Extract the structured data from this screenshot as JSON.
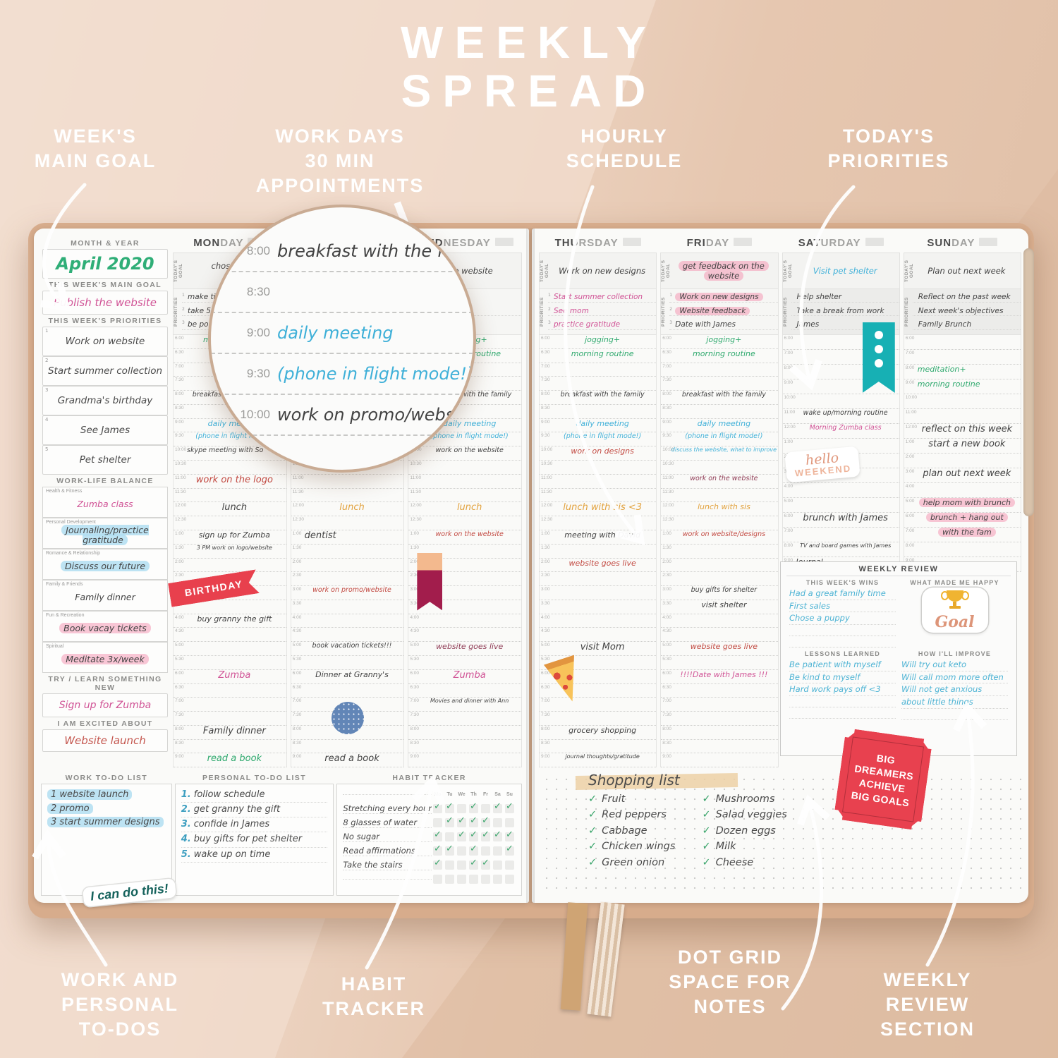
{
  "page_title": "WEEKLY\nSPREAD",
  "callouts": {
    "main_goal": "WEEK'S\nMAIN GOAL",
    "appointments": "WORK DAYS\n30 MIN\nAPPOINTMENTS",
    "hourly": "HOURLY\nSCHEDULE",
    "priorities": "TODAY'S\nPRIORITIES",
    "todos": "WORK AND\nPERSONAL\nTO-DOS",
    "habit": "HABIT\nTRACKER",
    "dotgrid": "DOT GRID\nSPACE FOR\nNOTES",
    "review": "WEEKLY\nREVIEW\nSECTION"
  },
  "labels": {
    "today_goal": "TODAY'S GOAL",
    "priorities": "PRIORITIES"
  },
  "sidebar": {
    "month_label": "MONTH & YEAR",
    "month_value": "April 2020",
    "main_goal_label": "THIS WEEK'S MAIN GOAL",
    "main_goal_value": "Publish the website",
    "priorities_label": "THIS WEEK'S PRIORITIES",
    "priorities": [
      "Work on website",
      "Start summer collection",
      "Grandma's birthday",
      "See James",
      "Pet shelter"
    ],
    "balance_label": "WORK-LIFE BALANCE",
    "balance": [
      {
        "category": "Health & Fitness",
        "value": "Zumba class",
        "color": "pink",
        "highlight": null
      },
      {
        "category": "Personal Development",
        "value": "Journaling/practice gratitude",
        "color": "black",
        "highlight": "blue"
      },
      {
        "category": "Romance & Relationship",
        "value": "Discuss our future",
        "color": "black",
        "highlight": "blue"
      },
      {
        "category": "Family & Friends",
        "value": "Family dinner",
        "color": "black",
        "highlight": null
      },
      {
        "category": "Fun & Recreation",
        "value": "Book vacay tickets",
        "color": "black",
        "highlight": "pink"
      },
      {
        "category": "Spiritual",
        "value": "Meditate 3x/week",
        "color": "black",
        "highlight": "pink"
      }
    ],
    "try_label": "TRY / LEARN SOMETHING NEW",
    "try_value": "Sign up for Zumba",
    "excited_label": "I AM EXCITED ABOUT",
    "excited_value": "Website launch"
  },
  "work_todo": {
    "label": "WORK TO-DO LIST",
    "items": [
      "1 website launch",
      "2 promo",
      "3 start summer designs"
    ],
    "sticker": "I can do this!"
  },
  "personal_todo": {
    "label": "PERSONAL TO-DO LIST",
    "items": [
      "follow schedule",
      "get granny the gift",
      "confide in James",
      "buy gifts for pet shelter",
      "wake up on time"
    ]
  },
  "habit_tracker": {
    "label": "HABIT TRACKER",
    "days": [
      "Mo",
      "Tu",
      "We",
      "Th",
      "Fr",
      "Sa",
      "Su"
    ],
    "habits": [
      {
        "name": "Stretching every hour",
        "checks": [
          1,
          1,
          0,
          1,
          0,
          1,
          1
        ]
      },
      {
        "name": "8 glasses of water",
        "checks": [
          0,
          1,
          1,
          1,
          1,
          0,
          0
        ]
      },
      {
        "name": "No sugar",
        "checks": [
          1,
          0,
          1,
          1,
          1,
          1,
          1
        ]
      },
      {
        "name": "Read affirmations",
        "checks": [
          1,
          1,
          0,
          1,
          0,
          0,
          1
        ]
      },
      {
        "name": "Take the stairs",
        "checks": [
          1,
          0,
          0,
          1,
          1,
          0,
          0
        ]
      },
      {
        "name": "",
        "checks": [
          0,
          0,
          0,
          0,
          0,
          0,
          0
        ]
      }
    ]
  },
  "shopping": {
    "title": "Shopping list",
    "col1": [
      "Fruit",
      "Red peppers",
      "Cabbage",
      "Chicken wings",
      "Green onion"
    ],
    "col2": [
      "Mushrooms",
      "Salad veggies",
      "Dozen eggs",
      "Milk",
      "Cheese"
    ]
  },
  "review": {
    "title": "WEEKLY REVIEW",
    "wins_label": "THIS WEEK'S WINS",
    "wins": [
      "Had a great family time",
      "First sales",
      "Chose a puppy"
    ],
    "happy_label": "WHAT MADE ME HAPPY",
    "happy_sticker": "Goal",
    "lessons_label": "LESSONS LEARNED",
    "lessons": [
      "Be patient with myself",
      "Be kind to myself",
      "Hard work pays off <3"
    ],
    "improve_label": "HOW I'LL IMPROVE",
    "improve": [
      "Will try out keto",
      "Will call mom more often",
      "Will not get anxious",
      "about little things"
    ]
  },
  "stickers": {
    "birthday": "BIRTHDAY",
    "big_goals": "BIG\nDREAMERS\nACHIEVE\nBIG GOALS",
    "hello1": "hello",
    "hello2": "WEEKEND",
    "goal": "Goal"
  },
  "magnifier": {
    "rows": [
      {
        "time": "8:00",
        "text": "breakfast with the family",
        "color": "black"
      },
      {
        "time": "8:30",
        "text": "",
        "color": "black"
      },
      {
        "time": "9:00",
        "text": "daily meeting",
        "color": "blue"
      },
      {
        "time": "9:30",
        "text": "(phone in flight mode!)",
        "color": "blue"
      },
      {
        "time": "10:00",
        "text": "work on promo/website",
        "color": "black"
      },
      {
        "time": "10:30",
        "text": "",
        "color": "black"
      }
    ]
  },
  "slots": {
    "weekday": [
      "6:00",
      "6:30",
      "7:00",
      "7:30",
      "8:00",
      "8:30",
      "9:00",
      "9:30",
      "10:00",
      "10:30",
      "11:00",
      "11:30",
      "12:00",
      "12:30",
      "1:00",
      "1:30",
      "2:00",
      "2:30",
      "3:00",
      "3:30",
      "4:00",
      "4:30",
      "5:00",
      "5:30",
      "6:00",
      "6:30",
      "7:00",
      "7:30",
      "8:00",
      "8:30",
      "9:00"
    ],
    "weekend": [
      "6:00",
      "7:00",
      "8:00",
      "9:00",
      "10:00",
      "11:00",
      "12:00",
      "1:00",
      "2:00",
      "3:00",
      "4:00",
      "5:00",
      "6:00",
      "7:00",
      "8:00",
      "9:00"
    ]
  },
  "days": [
    {
      "name_bold": "MON",
      "name_rest": "DAY",
      "type": "weekday",
      "page": "left",
      "goal": [
        {
          "text": "chose a we"
        },
        {
          "text": "crea"
        }
      ],
      "priorities": [
        {
          "num": "1",
          "text": "make ti"
        },
        {
          "num": "2",
          "text": "take 5-mi"
        },
        {
          "num": "3",
          "text": "be po"
        }
      ],
      "entries": [
        {
          "slot": 0,
          "text": "morning routine",
          "color": "green"
        },
        {
          "slot": 4,
          "text": "breakfast with the family",
          "size": "sm"
        },
        {
          "slot": 6,
          "text": "daily meeting",
          "color": "blue"
        },
        {
          "slot": 7,
          "text": "(phone in flight mode!)",
          "color": "blue",
          "size": "sm"
        },
        {
          "slot": 8,
          "text": "skype meeting with So",
          "size": "sm",
          "align": "left"
        },
        {
          "slot": 10,
          "text": "work on the logo",
          "color": "red",
          "size": "lg"
        },
        {
          "slot": 12,
          "text": "lunch",
          "size": "lg"
        },
        {
          "slot": 14,
          "text": "sign up for Zumba",
          "size": "md"
        },
        {
          "slot": 15,
          "text": "3 PM work on logo/website",
          "size": "xs"
        },
        {
          "slot": 18,
          "sticker": "birthday"
        },
        {
          "slot": 20,
          "text": "buy granny the gift",
          "size": "md"
        },
        {
          "slot": 24,
          "text": "Zumba",
          "color": "pink",
          "size": "lg"
        },
        {
          "slot": 28,
          "text": "Family dinner",
          "size": "lg"
        },
        {
          "slot": 30,
          "text": "read a book",
          "color": "green",
          "size": "lg"
        }
      ]
    },
    {
      "name_bold": "TUE",
      "name_rest": "SDAY",
      "type": "weekday",
      "page": "left",
      "goal": [],
      "priorities": [],
      "entries": [
        {
          "slot": 12,
          "text": "lunch",
          "color": "orange",
          "size": "lg"
        },
        {
          "slot": 14,
          "text": "dentist",
          "size": "lg",
          "align": "left"
        },
        {
          "slot": 18,
          "text": "work on promo/website",
          "color": "red",
          "size": "sm"
        },
        {
          "slot": 22,
          "text": "book vacation tickets!!!",
          "size": "sm"
        },
        {
          "slot": 24,
          "text": "Dinner at Granny's",
          "size": "md"
        },
        {
          "slot": 27,
          "sticker": "dot-circle"
        },
        {
          "slot": 30,
          "text": "read a book",
          "size": "lg"
        }
      ]
    },
    {
      "name_bold": "WED",
      "name_rest": "NESDAY",
      "type": "weekday",
      "page": "left",
      "goal": [
        {
          "text": "the website"
        }
      ],
      "priorities": [
        {
          "num": "1",
          "text": "work"
        }
      ],
      "entries": [
        {
          "slot": 0,
          "text": "jogging+",
          "color": "green"
        },
        {
          "slot": 1,
          "text": "morning routine",
          "color": "green"
        },
        {
          "slot": 4,
          "text": "breakfast with the family",
          "size": "sm"
        },
        {
          "slot": 6,
          "text": "daily meeting",
          "color": "blue"
        },
        {
          "slot": 7,
          "text": "(phone in flight mode!)",
          "color": "blue",
          "size": "sm"
        },
        {
          "slot": 8,
          "text": "work on the website",
          "size": "sm"
        },
        {
          "slot": 12,
          "text": "lunch",
          "color": "orange",
          "size": "lg"
        },
        {
          "slot": 14,
          "text": "work on the website",
          "color": "red",
          "size": "sm"
        },
        {
          "slot": 16,
          "sticker": "bookmark"
        },
        {
          "slot": 22,
          "text": "website goes live",
          "color": "maroon",
          "size": "md"
        },
        {
          "slot": 24,
          "text": "Zumba",
          "color": "pink",
          "size": "lg"
        },
        {
          "slot": 26,
          "text": "Movies and dinner with Ann",
          "size": "xs"
        }
      ]
    },
    {
      "name_bold": "THU",
      "name_rest": "RSDAY",
      "type": "weekday",
      "page": "right",
      "goal": [
        {
          "text": "Work on new designs"
        }
      ],
      "priorities": [
        {
          "num": "1",
          "text": "Start summer collection",
          "color": "pink"
        },
        {
          "num": "2",
          "text": "See mom",
          "color": "pink"
        },
        {
          "num": "3",
          "text": "practice gratitude",
          "color": "pink"
        }
      ],
      "entries": [
        {
          "slot": 0,
          "text": "jogging+",
          "color": "green"
        },
        {
          "slot": 1,
          "text": "morning routine",
          "color": "green"
        },
        {
          "slot": 4,
          "text": "breakfast with the family",
          "size": "sm"
        },
        {
          "slot": 6,
          "text": "daily meeting",
          "color": "blue"
        },
        {
          "slot": 7,
          "text": "(phone in flight mode!)",
          "color": "blue",
          "size": "sm"
        },
        {
          "slot": 8,
          "text": "work on designs",
          "color": "red"
        },
        {
          "slot": 12,
          "text": "lunch with sis <3",
          "color": "orange",
          "size": "lg"
        },
        {
          "slot": 14,
          "text": "meeting with David",
          "size": "md"
        },
        {
          "slot": 16,
          "text": "website goes live",
          "color": "red",
          "size": "md"
        },
        {
          "slot": 22,
          "text": "visit Mom",
          "size": "lg"
        },
        {
          "slot": 24,
          "sticker": "pizza"
        },
        {
          "slot": 28,
          "text": "grocery shopping",
          "size": "md"
        },
        {
          "slot": 30,
          "text": "journal thoughts/gratitude",
          "size": "xs"
        }
      ]
    },
    {
      "name_bold": "FRI",
      "name_rest": "DAY",
      "type": "weekday",
      "page": "right",
      "goal": [
        {
          "text": "get feedback on the",
          "highlight": "pink"
        },
        {
          "text": "website",
          "highlight": "pink"
        }
      ],
      "priorities": [
        {
          "num": "1",
          "text": "Work on new designs",
          "highlight": "pink"
        },
        {
          "num": "2",
          "text": "Website feedback",
          "highlight": "pink"
        },
        {
          "num": "3",
          "text": "Date with James"
        }
      ],
      "entries": [
        {
          "slot": 0,
          "text": "jogging+",
          "color": "green"
        },
        {
          "slot": 1,
          "text": "morning routine",
          "color": "green"
        },
        {
          "slot": 4,
          "text": "breakfast with the family",
          "size": "sm"
        },
        {
          "slot": 6,
          "text": "daily meeting",
          "color": "blue"
        },
        {
          "slot": 7,
          "text": "(phone in flight mode!)",
          "color": "blue",
          "size": "sm"
        },
        {
          "slot": 8,
          "text": "discuss the website, what to improve",
          "color": "blue",
          "size": "xs"
        },
        {
          "slot": 10,
          "text": "work on the website",
          "color": "maroon",
          "size": "sm"
        },
        {
          "slot": 12,
          "text": "lunch with sis",
          "color": "orange",
          "size": "md"
        },
        {
          "slot": 14,
          "text": "work on website/designs",
          "color": "red",
          "size": "sm"
        },
        {
          "slot": 18,
          "text": "buy gifts for shelter",
          "size": "sm"
        },
        {
          "slot": 19,
          "text": "visit shelter",
          "size": "md"
        },
        {
          "slot": 22,
          "text": "website goes live",
          "color": "red",
          "size": "md"
        },
        {
          "slot": 24,
          "text": "!!!!Date with James !!!",
          "color": "pink",
          "size": "md"
        }
      ]
    },
    {
      "name_bold": "SAT",
      "name_rest": "URDAY",
      "type": "weekend",
      "page": "right",
      "goal": [
        {
          "text": "Visit pet shelter",
          "color": "blue"
        }
      ],
      "priorities": [
        {
          "text": "Help shelter"
        },
        {
          "text": "Take a break from work"
        },
        {
          "text": "James"
        }
      ],
      "entries": [
        {
          "slot": 0,
          "sticker": "teal-bookmark"
        },
        {
          "slot": 5,
          "text": "wake up/morning routine",
          "size": "sm"
        },
        {
          "slot": 6,
          "text": "Morning Zumba class",
          "color": "pink",
          "size": "sm"
        },
        {
          "slot": 8,
          "sticker": "hello-weekend"
        },
        {
          "slot": 12,
          "text": "brunch with James",
          "size": "lg"
        },
        {
          "slot": 14,
          "text": "TV and board games with James",
          "size": "xs"
        },
        {
          "slot": 15,
          "text": "Journal",
          "size": "md",
          "align": "left"
        }
      ]
    },
    {
      "name_bold": "SUN",
      "name_rest": "DAY",
      "type": "weekend",
      "page": "right",
      "goal": [
        {
          "text": "Plan out next week"
        }
      ],
      "priorities": [
        {
          "text": "Reflect on the past week"
        },
        {
          "text": "Next week's objectives"
        },
        {
          "text": "Family Brunch"
        }
      ],
      "entries": [
        {
          "slot": 2,
          "text": "meditation+",
          "color": "green",
          "align": "left"
        },
        {
          "slot": 3,
          "text": "morning routine",
          "color": "green",
          "align": "left"
        },
        {
          "slot": 6,
          "text": "reflect on this week",
          "size": "lg"
        },
        {
          "slot": 7,
          "text": "start a new book",
          "size": "lg"
        },
        {
          "slot": 9,
          "text": "plan out next week",
          "size": "lg"
        },
        {
          "slot": 11,
          "text": "help mom with brunch",
          "highlight": "pink",
          "size": "md"
        },
        {
          "slot": 12,
          "text": "brunch + hang out",
          "highlight": "pink",
          "size": "md"
        },
        {
          "slot": 13,
          "text": "with the fam",
          "highlight": "pink",
          "size": "md"
        }
      ]
    }
  ]
}
